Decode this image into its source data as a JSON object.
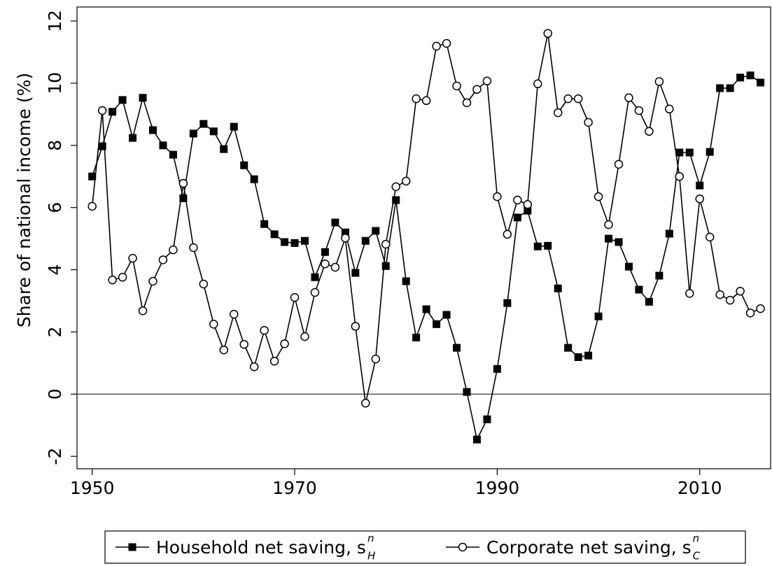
{
  "chart_data": {
    "type": "line",
    "ylabel": "Share of national income (%)",
    "x": [
      1950,
      1951,
      1952,
      1953,
      1954,
      1955,
      1956,
      1957,
      1958,
      1959,
      1960,
      1961,
      1962,
      1963,
      1964,
      1965,
      1966,
      1967,
      1968,
      1969,
      1970,
      1971,
      1972,
      1973,
      1974,
      1975,
      1976,
      1977,
      1978,
      1979,
      1980,
      1981,
      1982,
      1983,
      1984,
      1985,
      1986,
      1987,
      1988,
      1989,
      1990,
      1991,
      1992,
      1993,
      1994,
      1995,
      1996,
      1997,
      1998,
      1999,
      2000,
      2001,
      2002,
      2003,
      2004,
      2005,
      2006,
      2007,
      2008,
      2009,
      2010,
      2011,
      2012,
      2013,
      2014,
      2015,
      2016
    ],
    "series": [
      {
        "name": "Household net saving, s",
        "symbol_sup": "n",
        "symbol_sub": "H",
        "color": "#000000",
        "marker": "square",
        "values": [
          7.0,
          7.97,
          9.08,
          9.46,
          8.24,
          9.53,
          8.49,
          8.0,
          7.7,
          6.3,
          8.38,
          8.69,
          8.45,
          7.88,
          8.6,
          7.36,
          6.91,
          5.47,
          5.14,
          4.89,
          4.86,
          4.93,
          3.76,
          4.57,
          5.52,
          5.2,
          3.9,
          4.93,
          5.25,
          4.12,
          6.24,
          3.63,
          1.82,
          2.73,
          2.25,
          2.55,
          1.49,
          0.07,
          -1.46,
          -0.81,
          0.81,
          2.93,
          5.68,
          5.9,
          4.75,
          4.77,
          3.4,
          1.49,
          1.19,
          1.24,
          2.5,
          5.0,
          4.89,
          4.1,
          3.36,
          2.97,
          3.81,
          5.16,
          7.77,
          7.77,
          6.71,
          7.79,
          9.84,
          9.84,
          10.18,
          10.25,
          10.02
        ]
      },
      {
        "name": "Corporate net saving, s",
        "symbol_sup": "n",
        "symbol_sub": "C",
        "color": "#000000",
        "marker": "circle",
        "values": [
          6.04,
          9.12,
          3.67,
          3.76,
          4.37,
          2.68,
          3.63,
          4.32,
          4.64,
          6.78,
          4.71,
          3.54,
          2.25,
          1.42,
          2.57,
          1.6,
          0.88,
          2.05,
          1.06,
          1.62,
          3.11,
          1.85,
          3.27,
          4.19,
          4.08,
          5.02,
          2.18,
          -0.29,
          1.13,
          4.82,
          6.67,
          6.85,
          9.5,
          9.44,
          11.19,
          11.28,
          9.91,
          9.37,
          9.8,
          10.07,
          6.35,
          5.14,
          6.24,
          6.1,
          9.98,
          11.6,
          9.05,
          9.5,
          9.5,
          8.74,
          6.35,
          5.45,
          7.39,
          9.53,
          9.12,
          8.45,
          10.05,
          9.17,
          7.0,
          3.24,
          6.28,
          5.05,
          3.2,
          3.02,
          3.31,
          2.61,
          2.75
        ]
      }
    ],
    "xlim": [
      1948.5,
      2017
    ],
    "xticks": [
      1950,
      1970,
      1990,
      2010
    ],
    "ylim": [
      -2.4,
      12.45
    ],
    "yticks": [
      -2,
      0,
      2,
      4,
      6,
      8,
      10,
      12
    ],
    "hline": 0,
    "grid": false,
    "legend": "bottom"
  }
}
